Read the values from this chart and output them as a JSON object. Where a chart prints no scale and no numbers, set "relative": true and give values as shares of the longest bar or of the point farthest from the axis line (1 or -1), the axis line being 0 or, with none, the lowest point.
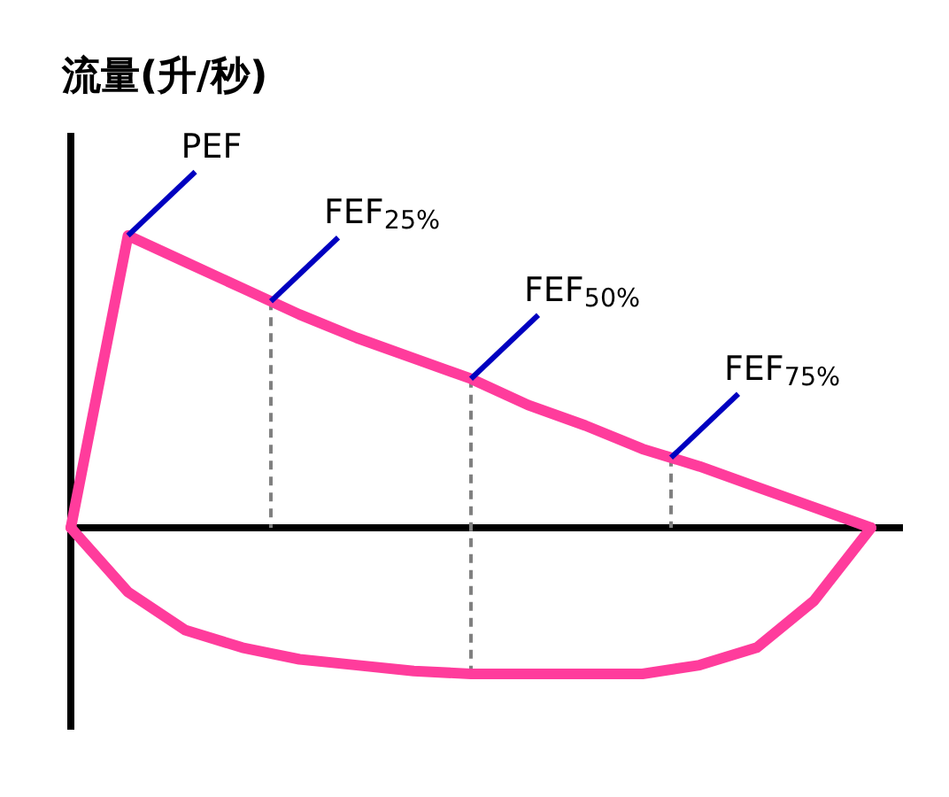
{
  "chart_data": {
    "type": "line",
    "title": "流量(升/秒)",
    "relative": true,
    "categories": [
      null,
      null,
      null,
      null,
      null,
      null,
      null,
      null,
      null,
      null,
      null,
      null,
      null,
      null,
      null
    ],
    "series": [
      {
        "color": "#ff3c9c",
        "values": [
          0,
          1.0,
          0.91,
          0.82,
          0.73,
          0.65,
          0.58,
          0.51,
          0.42,
          0.35,
          0.27,
          0.21,
          0.14,
          0.07,
          0
        ]
      },
      {
        "color": "#ff3c9c",
        "values": [
          0,
          -0.22,
          -0.35,
          -0.41,
          -0.45,
          -0.47,
          -0.49,
          -0.5,
          -0.5,
          -0.5,
          -0.5,
          -0.47,
          -0.41,
          -0.25,
          0
        ]
      }
    ],
    "ref_lines": [
      {
        "axis": "y",
        "value": 0,
        "color": "#000000"
      }
    ],
    "annotations": [
      "PEF",
      "FEF$_{25%}$",
      "FEF$_{50%}$",
      "FEF$_{75%}$"
    ]
  }
}
